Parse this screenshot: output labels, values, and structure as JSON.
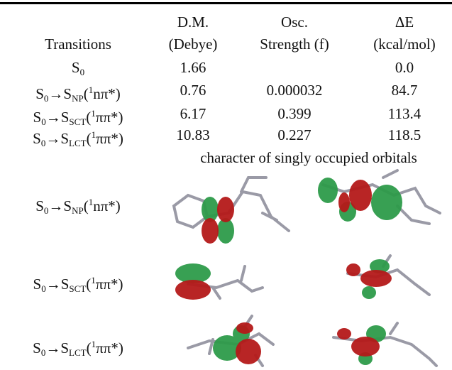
{
  "table": {
    "columns": [
      {
        "lines": [
          "Transitions"
        ]
      },
      {
        "lines": [
          "D.M.",
          "(Debye)"
        ]
      },
      {
        "lines": [
          "Osc.",
          "Strength (f)"
        ]
      },
      {
        "lines": [
          "ΔE",
          "(kcal/mol)"
        ]
      }
    ],
    "rows": [
      {
        "label": [
          {
            "text": "S"
          },
          {
            "sub": "0"
          }
        ],
        "cells": [
          "1.66",
          null,
          "0.0"
        ]
      },
      {
        "label": [
          {
            "text": "S"
          },
          {
            "sub": "0"
          },
          {
            "text": "→S"
          },
          {
            "sub": "NP"
          },
          {
            "text": "("
          },
          {
            "sup": "1"
          },
          {
            "text": "nπ*)"
          }
        ],
        "cells": [
          "0.76",
          "0.000032",
          "84.7"
        ]
      },
      {
        "label": [
          {
            "text": "S"
          },
          {
            "sub": "0"
          },
          {
            "text": "→S"
          },
          {
            "sub": "SCT"
          },
          {
            "text": "("
          },
          {
            "sup": "1"
          },
          {
            "text": "ππ*)"
          }
        ],
        "cells": [
          "6.17",
          "0.399",
          "113.4"
        ]
      },
      {
        "label": [
          {
            "text": "S"
          },
          {
            "sub": "0"
          },
          {
            "text": "→S"
          },
          {
            "sub": "LCT"
          },
          {
            "text": "("
          },
          {
            "sup": "1"
          },
          {
            "text": "ππ*)"
          }
        ],
        "cells": [
          "10.83",
          "0.227",
          "118.5"
        ]
      }
    ],
    "orbital_caption": "character of singly occupied orbitals",
    "orbital_rows": [
      {
        "label": [
          {
            "text": "S"
          },
          {
            "sub": "0"
          },
          {
            "text": "→S"
          },
          {
            "sub": "NP"
          },
          {
            "text": "("
          },
          {
            "sup": "1"
          },
          {
            "text": "nπ*)"
          }
        ]
      },
      {
        "label": [
          {
            "text": "S"
          },
          {
            "sub": "0"
          },
          {
            "text": "→S"
          },
          {
            "sub": "SCT"
          },
          {
            "text": "("
          },
          {
            "sup": "1"
          },
          {
            "text": "ππ*)"
          }
        ]
      },
      {
        "label": [
          {
            "text": "S"
          },
          {
            "sub": "0"
          },
          {
            "text": "→S"
          },
          {
            "sub": "LCT"
          },
          {
            "text": "("
          },
          {
            "sup": "1"
          },
          {
            "text": "ππ*)"
          }
        ]
      }
    ]
  }
}
